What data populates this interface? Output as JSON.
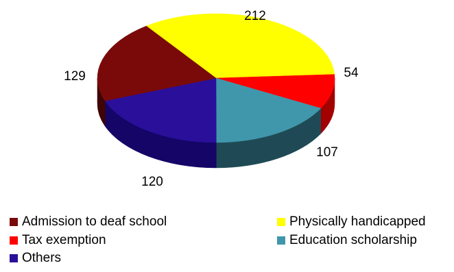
{
  "chart_data": {
    "type": "pie",
    "title": "",
    "legend_position": "bottom",
    "slices": [
      {
        "label": "Physically handicapped",
        "value": 212,
        "color": "#ffff00",
        "side_color": "#b3b300"
      },
      {
        "label": "Tax exemption",
        "value": 54,
        "color": "#ff0000",
        "side_color": "#a30000"
      },
      {
        "label": "Education scholarship",
        "value": 107,
        "color": "#4097ab",
        "side_color": "#1f4a55"
      },
      {
        "label": "Others",
        "value": 120,
        "color": "#2a0f9a",
        "side_color": "#140566"
      },
      {
        "label": "Admission to deaf school",
        "value": 129,
        "color": "#7a0a0a",
        "side_color": "#3f0404"
      }
    ]
  },
  "legend": {
    "items": [
      {
        "label": "Admission to deaf school",
        "color": "#7a0a0a"
      },
      {
        "label": "Physically handicapped",
        "color": "#ffff00"
      },
      {
        "label": "Tax exemption",
        "color": "#ff0000"
      },
      {
        "label": "Education scholarship",
        "color": "#4097ab"
      },
      {
        "label": "Others",
        "color": "#2a0f9a"
      }
    ]
  }
}
